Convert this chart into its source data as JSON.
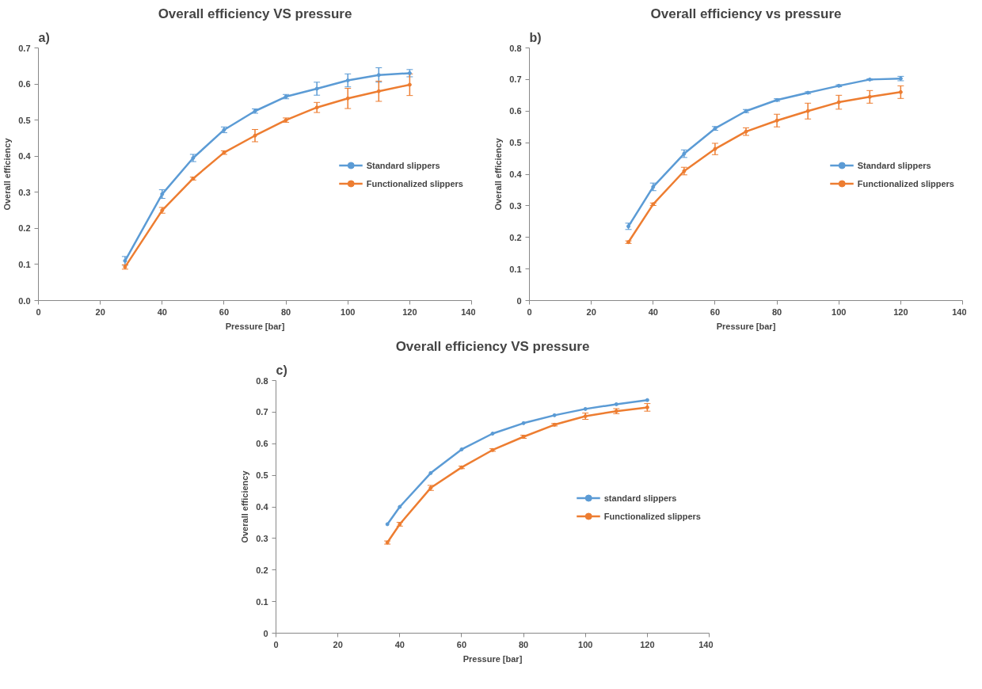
{
  "chart_data": [
    {
      "type": "line",
      "title": "Overall efficiency VS pressure",
      "annotations": [
        "a)"
      ],
      "xlabel": "Pressure [bar]",
      "ylabel": "Overall efficiency",
      "xlim": [
        0,
        140
      ],
      "xticks": [
        0,
        20,
        40,
        60,
        80,
        100,
        120,
        140
      ],
      "ylim": [
        0,
        0.7
      ],
      "yticks": [
        {
          "value": 0,
          "label": "0.0"
        },
        0.1,
        0.2,
        0.3,
        0.4,
        0.5,
        0.6,
        0.7
      ],
      "grid": false,
      "legend": "center right",
      "marker": "circle",
      "x": [
        28,
        40,
        50,
        60,
        70,
        80,
        90,
        100,
        110,
        120
      ],
      "series": [
        {
          "name": "Standard slippers",
          "color": "#5b9bd5",
          "values": [
            0.11,
            0.295,
            0.395,
            0.473,
            0.525,
            0.565,
            0.587,
            0.61,
            0.625,
            0.63
          ],
          "errors": [
            0.012,
            0.012,
            0.01,
            0.008,
            0.006,
            0.006,
            0.018,
            0.018,
            0.02,
            0.01
          ]
        },
        {
          "name": "Functionalized slippers",
          "color": "#ed7d31",
          "values": [
            0.093,
            0.25,
            0.338,
            0.41,
            0.457,
            0.5,
            0.535,
            0.56,
            0.58,
            0.598
          ],
          "errors": [
            0.006,
            0.008,
            0.004,
            0.005,
            0.017,
            0.006,
            0.014,
            0.028,
            0.028,
            0.03
          ]
        }
      ]
    },
    {
      "type": "line",
      "title": "Overall efficiency vs pressure",
      "annotations": [
        "b)"
      ],
      "xlabel": "Pressure [bar]",
      "ylabel": "Overall efficiency",
      "xlim": [
        0,
        140
      ],
      "xticks": [
        0,
        20,
        40,
        60,
        80,
        100,
        120,
        140
      ],
      "ylim": [
        0,
        0.8
      ],
      "yticks": [
        0,
        0.1,
        0.2,
        0.3,
        0.4,
        0.5,
        0.6,
        0.7,
        0.8
      ],
      "grid": false,
      "legend": "center right",
      "marker": "circle",
      "x": [
        32,
        40,
        50,
        60,
        70,
        80,
        90,
        100,
        110,
        120
      ],
      "series": [
        {
          "name": "Standard slippers",
          "color": "#5b9bd5",
          "values": [
            0.235,
            0.36,
            0.465,
            0.545,
            0.6,
            0.635,
            0.658,
            0.68,
            0.7,
            0.703
          ],
          "errors": [
            0.01,
            0.012,
            0.012,
            0.006,
            0.005,
            0.004,
            0.003,
            0.003,
            0.002,
            0.007
          ]
        },
        {
          "name": "Functionalized slippers",
          "color": "#ed7d31",
          "values": [
            0.185,
            0.305,
            0.41,
            0.48,
            0.535,
            0.57,
            0.6,
            0.628,
            0.645,
            0.66
          ],
          "errors": [
            0.004,
            0.004,
            0.012,
            0.018,
            0.012,
            0.02,
            0.025,
            0.022,
            0.02,
            0.02
          ]
        }
      ]
    },
    {
      "type": "line",
      "title": "Overall efficiency VS pressure",
      "annotations": [
        "c)"
      ],
      "xlabel": "Pressure [bar]",
      "ylabel": "Overall efficiency",
      "xlim": [
        0,
        140
      ],
      "xticks": [
        0,
        20,
        40,
        60,
        80,
        100,
        120,
        140
      ],
      "ylim": [
        0,
        0.8
      ],
      "yticks": [
        0,
        0.1,
        0.2,
        0.3,
        0.4,
        0.5,
        0.6,
        0.7,
        0.8
      ],
      "grid": false,
      "legend": "center right",
      "marker": "circle",
      "x": [
        36,
        40,
        50,
        60,
        70,
        80,
        90,
        100,
        110,
        120
      ],
      "series": [
        {
          "name": "standard slippers",
          "color": "#5b9bd5",
          "values": [
            0.345,
            0.4,
            0.507,
            0.582,
            0.632,
            0.665,
            0.69,
            0.71,
            0.725,
            0.738
          ]
        },
        {
          "name": "Functionalized slippers",
          "color": "#ed7d31",
          "values": [
            0.287,
            0.345,
            0.46,
            0.525,
            0.58,
            0.622,
            0.66,
            0.687,
            0.703,
            0.715
          ],
          "errors": [
            0.005,
            0.006,
            0.008,
            0.004,
            0.004,
            0.005,
            0.004,
            0.01,
            0.008,
            0.012
          ]
        }
      ]
    }
  ]
}
